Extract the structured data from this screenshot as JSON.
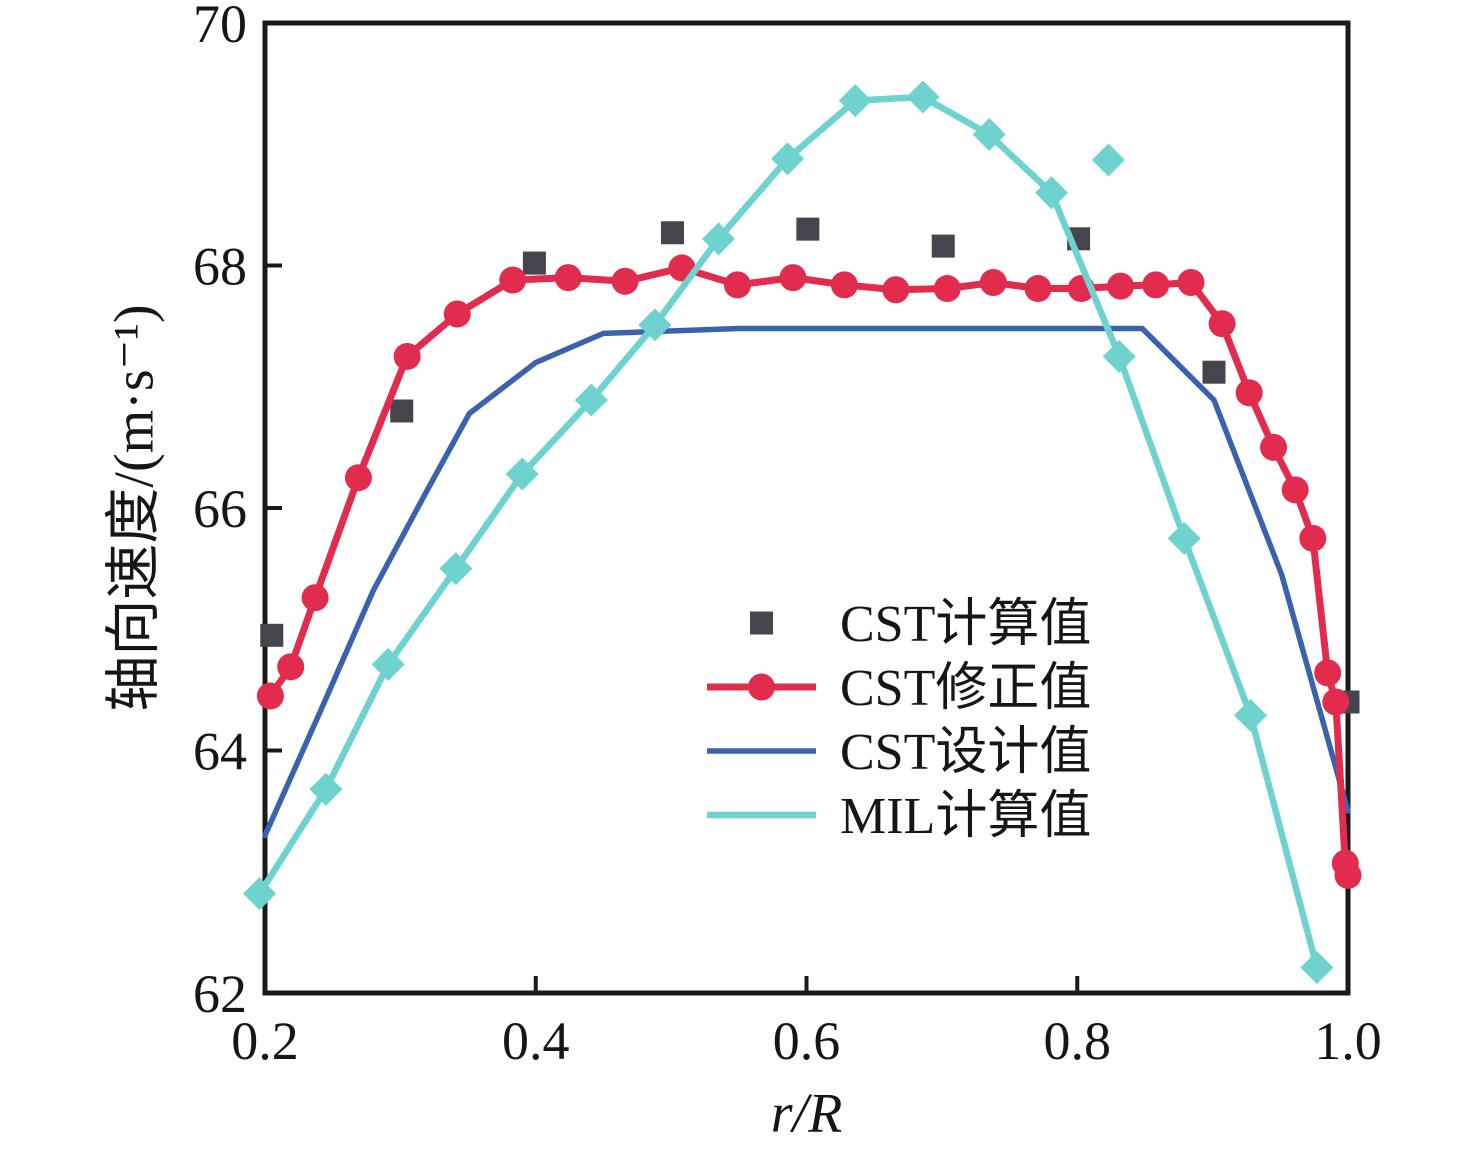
{
  "figure": {
    "background": "#ffffff",
    "axis_color": "#1a1a1a"
  },
  "chart_data": {
    "type": "line",
    "title": "",
    "xlabel": "r/R",
    "ylabel": "轴向速度/(m·s⁻¹)",
    "xlim": [
      0.2,
      1.0
    ],
    "ylim": [
      62,
      70
    ],
    "x_ticks": [
      0.2,
      0.4,
      0.6,
      0.8,
      1.0
    ],
    "x_tick_labels": [
      "0.2",
      "0.4",
      "0.6",
      "0.8",
      "1.0"
    ],
    "y_ticks": [
      62,
      64,
      66,
      68,
      70
    ],
    "y_tick_labels": [
      "62",
      "64",
      "66",
      "68",
      "70"
    ],
    "grid": false,
    "legend_position": "inside-center-right",
    "series": [
      {
        "key": "cst-computed",
        "name": "CST计算值",
        "draw": "scatter",
        "marker": "square",
        "color": "#46444c",
        "legend_glyph": "marker",
        "points": [
          [
            0.205,
            64.95
          ],
          [
            0.301,
            66.8
          ],
          [
            0.399,
            68.02
          ],
          [
            0.501,
            68.27
          ],
          [
            0.601,
            68.3
          ],
          [
            0.701,
            68.16
          ],
          [
            0.801,
            68.22
          ],
          [
            0.901,
            67.12
          ],
          [
            1.0,
            64.4
          ]
        ]
      },
      {
        "key": "cst-corrected",
        "name": "CST修正值",
        "draw": "line+marker",
        "marker": "circle",
        "color": "#e22c4e",
        "legend_glyph": "line+marker",
        "points": [
          [
            0.204,
            64.45
          ],
          [
            0.219,
            64.69
          ],
          [
            0.237,
            65.26
          ],
          [
            0.269,
            66.25
          ],
          [
            0.305,
            67.25
          ],
          [
            0.342,
            67.6
          ],
          [
            0.383,
            67.88
          ],
          [
            0.424,
            67.9
          ],
          [
            0.466,
            67.87
          ],
          [
            0.508,
            67.98
          ],
          [
            0.549,
            67.84
          ],
          [
            0.59,
            67.9
          ],
          [
            0.628,
            67.84
          ],
          [
            0.666,
            67.8
          ],
          [
            0.704,
            67.81
          ],
          [
            0.738,
            67.86
          ],
          [
            0.771,
            67.81
          ],
          [
            0.803,
            67.81
          ],
          [
            0.832,
            67.83
          ],
          [
            0.858,
            67.84
          ],
          [
            0.884,
            67.86
          ],
          [
            0.907,
            67.52
          ],
          [
            0.927,
            66.95
          ],
          [
            0.945,
            66.5
          ],
          [
            0.961,
            66.15
          ],
          [
            0.974,
            65.75
          ],
          [
            0.985,
            64.64
          ],
          [
            0.991,
            64.4
          ],
          [
            0.998,
            63.07
          ],
          [
            1.0,
            62.97
          ]
        ]
      },
      {
        "key": "cst-design",
        "name": "CST设计值",
        "draw": "line",
        "marker": "none",
        "color": "#3a62ad",
        "legend_glyph": "line",
        "points": [
          [
            0.2,
            63.3
          ],
          [
            0.24,
            64.3
          ],
          [
            0.28,
            65.32
          ],
          [
            0.32,
            66.15
          ],
          [
            0.351,
            66.78
          ],
          [
            0.4,
            67.2
          ],
          [
            0.45,
            67.44
          ],
          [
            0.55,
            67.48
          ],
          [
            0.848,
            67.48
          ],
          [
            0.901,
            66.89
          ],
          [
            0.951,
            65.45
          ],
          [
            1.0,
            63.5
          ]
        ]
      },
      {
        "key": "mil-computed",
        "name": "MIL计算值",
        "draw": "line+marker",
        "marker": "diamond",
        "color": "#6ed3ce",
        "legend_glyph": "line",
        "points": [
          [
            0.196,
            62.82
          ],
          [
            0.245,
            63.68
          ],
          [
            0.291,
            64.71
          ],
          [
            0.341,
            65.5
          ],
          [
            0.39,
            66.28
          ],
          [
            0.441,
            66.89
          ],
          [
            0.488,
            67.51
          ],
          [
            0.535,
            68.22
          ],
          [
            0.586,
            68.88
          ],
          [
            0.636,
            69.36
          ],
          [
            0.686,
            69.39
          ],
          [
            0.735,
            69.08
          ],
          [
            0.781,
            68.6
          ],
          [
            0.831,
            67.25
          ],
          [
            0.879,
            65.75
          ],
          [
            0.928,
            64.29
          ],
          [
            0.977,
            62.21
          ]
        ],
        "extra_points": [
          [
            0.823,
            68.87
          ]
        ]
      }
    ]
  }
}
